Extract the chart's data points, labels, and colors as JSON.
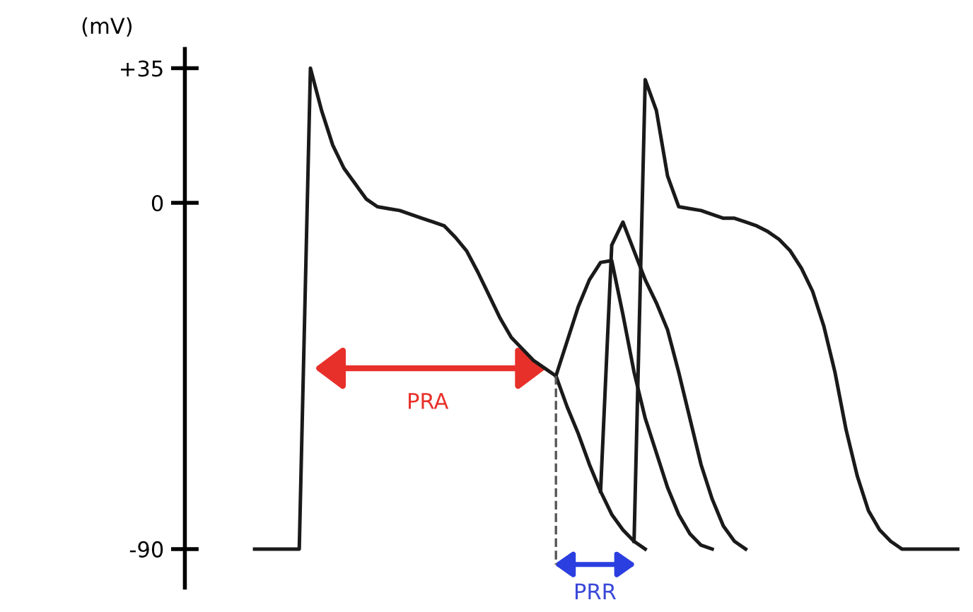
{
  "chart_data": {
    "type": "line",
    "ylabel": "(mV)",
    "categories": [
      null,
      null,
      null,
      null,
      null,
      null,
      null,
      null,
      null,
      null,
      null,
      null,
      null,
      null,
      null,
      null,
      null,
      null,
      null,
      null,
      null,
      null,
      null,
      null,
      null,
      null,
      null,
      null,
      null,
      null,
      null,
      null,
      null,
      null,
      null,
      null,
      null,
      null,
      null,
      null,
      null,
      null,
      null,
      null,
      null,
      null,
      null,
      null,
      null,
      null,
      null,
      null,
      null,
      null,
      null,
      null,
      null,
      null,
      null,
      null,
      null,
      null,
      null,
      null
    ],
    "ylim": [
      -100,
      40
    ],
    "yticks": [
      {
        "value": 35,
        "label": "+35"
      },
      0,
      -90
    ],
    "tick_labels": "y",
    "grid": false,
    "legend": false,
    "marker": "none",
    "line_style": "solid",
    "series": [
      {
        "color": "#1a1a1a",
        "values": [
          -90,
          -90,
          -90,
          -90,
          -90,
          35,
          24,
          15,
          9,
          5,
          1,
          -1,
          -1.5,
          -2,
          -3,
          -4,
          -5,
          -6,
          -9,
          -12.5,
          -18,
          -24,
          -30,
          -35,
          -38,
          -41,
          -43,
          -45,
          -53,
          -60,
          -68,
          -75,
          -81,
          -85,
          -88,
          -90,
          null,
          null,
          null,
          null,
          null,
          null,
          null,
          null,
          null,
          null,
          null,
          null,
          null,
          null,
          null,
          null,
          null,
          null,
          null,
          null,
          null,
          null,
          null,
          null,
          null,
          null,
          null,
          null
        ]
      },
      {
        "color": "#1a1a1a",
        "values": [
          null,
          null,
          null,
          null,
          null,
          null,
          null,
          null,
          null,
          null,
          null,
          null,
          null,
          null,
          null,
          null,
          null,
          null,
          null,
          null,
          null,
          null,
          null,
          null,
          null,
          null,
          null,
          -45,
          -36,
          -27,
          -20,
          -15.5,
          -15,
          -29,
          -44,
          -56,
          -65,
          -74,
          -81,
          -86,
          -89,
          -90,
          null,
          null,
          null,
          null,
          null,
          null,
          null,
          null,
          null,
          null,
          null,
          null,
          null,
          null,
          null,
          null,
          null,
          null,
          null,
          null,
          null,
          null
        ]
      },
      {
        "color": "#1a1a1a",
        "values": [
          null,
          null,
          null,
          null,
          null,
          null,
          null,
          null,
          null,
          null,
          null,
          null,
          null,
          null,
          null,
          null,
          null,
          null,
          null,
          null,
          null,
          null,
          null,
          null,
          null,
          null,
          null,
          null,
          null,
          null,
          null,
          -75,
          -11,
          -5,
          -12.5,
          -20,
          -26,
          -33,
          -44,
          -56,
          -68,
          -77,
          -84,
          -88,
          -90,
          null,
          null,
          null,
          null,
          null,
          null,
          null,
          null,
          null,
          null,
          null,
          null,
          null,
          null,
          null,
          null,
          null,
          null,
          null
        ]
      },
      {
        "color": "#1a1a1a",
        "values": [
          null,
          null,
          null,
          null,
          null,
          null,
          null,
          null,
          null,
          null,
          null,
          null,
          null,
          null,
          null,
          null,
          null,
          null,
          null,
          null,
          null,
          null,
          null,
          null,
          null,
          null,
          null,
          null,
          null,
          null,
          null,
          null,
          null,
          null,
          -88,
          32,
          24,
          7,
          -1,
          -1.5,
          -2,
          -3,
          -4,
          -4,
          -5,
          -6,
          -7.5,
          -9.5,
          -12.5,
          -17,
          -23,
          -32,
          -44,
          -59,
          -71,
          -80,
          -85,
          -88,
          -90,
          -90,
          -90,
          -90,
          -90,
          -90
        ]
      }
    ],
    "annotations": [
      "PRA",
      "PRR"
    ]
  }
}
